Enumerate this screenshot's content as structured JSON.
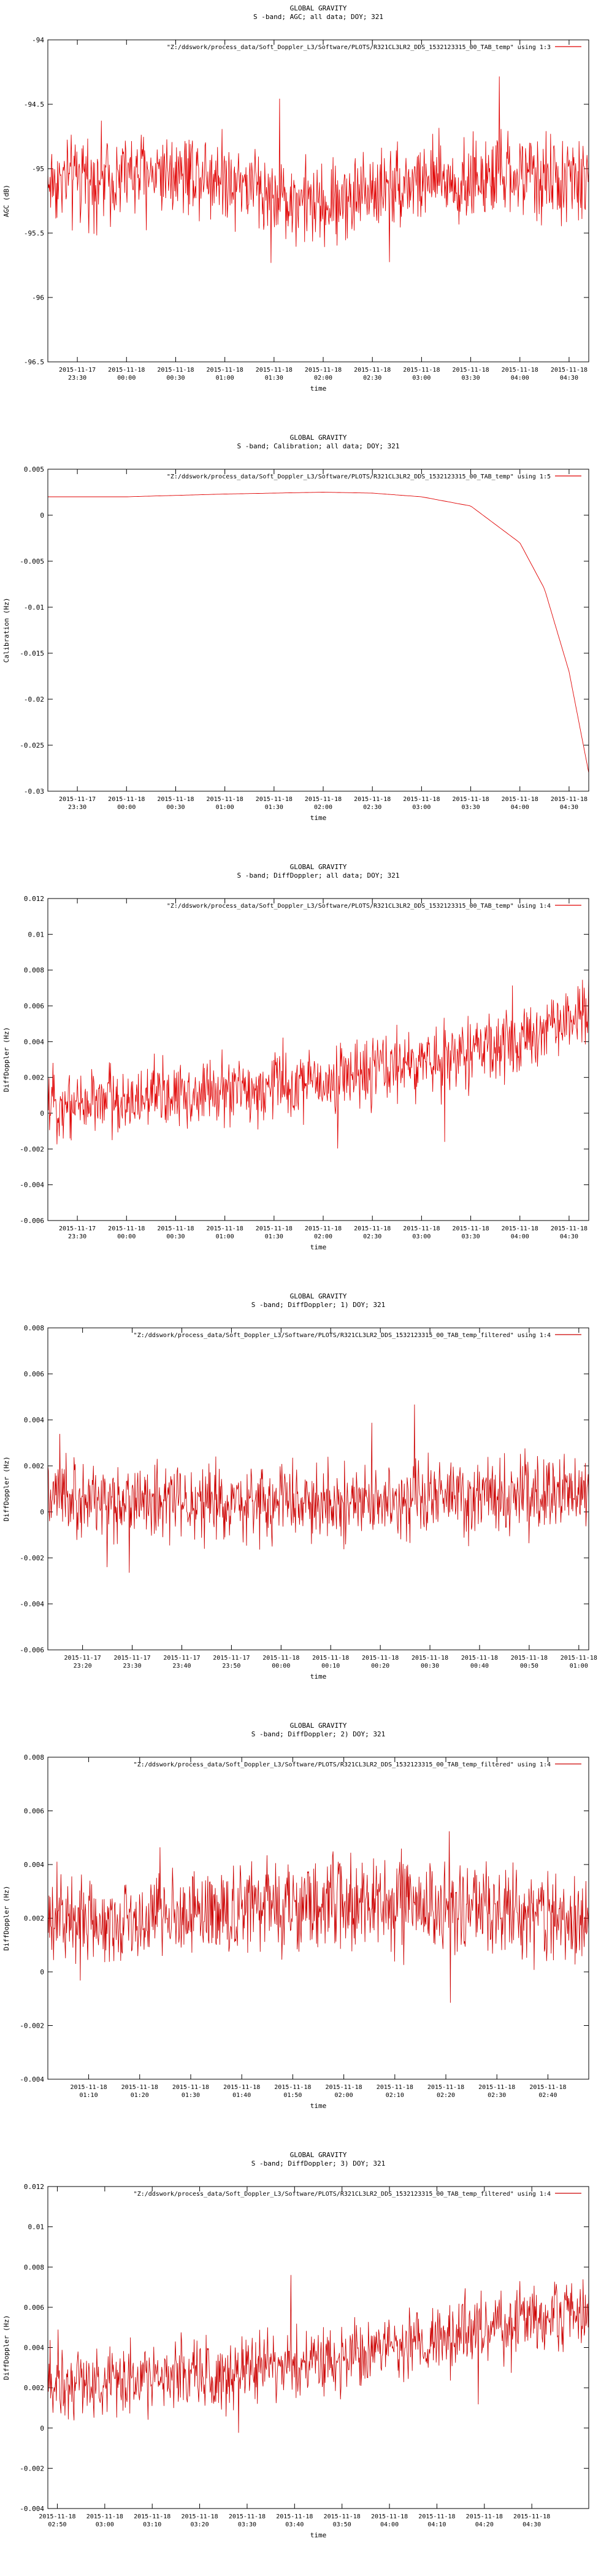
{
  "chart_data": [
    {
      "type": "line",
      "title": "GLOBAL GRAVITY",
      "subtitle": "S -band; AGC; all data; DOY; 321",
      "legend": "\"Z:/ddswork/process_data/Soft_Doppler_L3/Software/PLOTS/R321CL3LR2_DDS_1532123315_00_TAB_temp\" using 1:3",
      "legend_position": "top-right",
      "ylabel": "AGC (dB)",
      "xlabel": "time",
      "ylim": [
        -96.5,
        -94
      ],
      "yticks": [
        "-94",
        "-94.5",
        "-95",
        "-95.5",
        "-96",
        "-96.5"
      ],
      "xticks": [
        [
          "2015-11-17",
          "23:30"
        ],
        [
          "2015-11-18",
          "00:00"
        ],
        [
          "2015-11-18",
          "00:30"
        ],
        [
          "2015-11-18",
          "01:00"
        ],
        [
          "2015-11-18",
          "01:30"
        ],
        [
          "2015-11-18",
          "02:00"
        ],
        [
          "2015-11-18",
          "02:30"
        ],
        [
          "2015-11-18",
          "03:00"
        ],
        [
          "2015-11-18",
          "03:30"
        ],
        [
          "2015-11-18",
          "04:00"
        ],
        [
          "2015-11-18",
          "04:30"
        ]
      ],
      "x_range": [
        "2015-11-17 23:12",
        "2015-11-18 04:42"
      ],
      "color": "#e00000",
      "series": [
        {
          "name": "",
          "x": [
            "2015-11-17 23:12",
            "2015-11-18 00:00",
            "2015-11-18 00:30",
            "2015-11-18 01:00",
            "2015-11-18 01:30",
            "2015-11-18 02:00",
            "2015-11-18 02:30",
            "2015-11-18 03:00",
            "2015-11-18 03:30",
            "2015-11-18 04:00",
            "2015-11-18 04:42"
          ],
          "y": [
            -95.1,
            -95.05,
            -95.0,
            -95.05,
            -95.2,
            -95.3,
            -95.15,
            -95.1,
            -95.1,
            -95.05,
            -95.1
          ],
          "noise": 0.28
        }
      ]
    },
    {
      "type": "line",
      "title": "GLOBAL GRAVITY",
      "subtitle": "S -band; Calibration; all data; DOY; 321",
      "legend": "\"Z:/ddswork/process_data/Soft_Doppler_L3/Software/PLOTS/R321CL3LR2_DDS_1532123315_00_TAB_temp\" using 1:5",
      "legend_position": "top-right",
      "ylabel": "Calibration (Hz)",
      "xlabel": "time",
      "ylim": [
        -0.03,
        0.005
      ],
      "yticks": [
        "0.005",
        "0",
        "-0.005",
        "-0.01",
        "-0.015",
        "-0.02",
        "-0.025",
        "-0.03"
      ],
      "xticks": [
        [
          "2015-11-17",
          "23:30"
        ],
        [
          "2015-11-18",
          "00:00"
        ],
        [
          "2015-11-18",
          "00:30"
        ],
        [
          "2015-11-18",
          "01:00"
        ],
        [
          "2015-11-18",
          "01:30"
        ],
        [
          "2015-11-18",
          "02:00"
        ],
        [
          "2015-11-18",
          "02:30"
        ],
        [
          "2015-11-18",
          "03:00"
        ],
        [
          "2015-11-18",
          "03:30"
        ],
        [
          "2015-11-18",
          "04:00"
        ],
        [
          "2015-11-18",
          "04:30"
        ]
      ],
      "x_range": [
        "2015-11-17 23:12",
        "2015-11-18 04:42"
      ],
      "color": "#e00000",
      "series": [
        {
          "name": "",
          "x": [
            "2015-11-17 23:12",
            "2015-11-18 00:00",
            "2015-11-18 01:00",
            "2015-11-18 02:00",
            "2015-11-18 02:30",
            "2015-11-18 03:00",
            "2015-11-18 03:30",
            "2015-11-18 04:00",
            "2015-11-18 04:15",
            "2015-11-18 04:30",
            "2015-11-18 04:42"
          ],
          "y": [
            0.002,
            0.002,
            0.0023,
            0.0025,
            0.0024,
            0.002,
            0.001,
            -0.003,
            -0.008,
            -0.017,
            -0.028
          ],
          "noise": 0
        }
      ]
    },
    {
      "type": "line",
      "title": "GLOBAL GRAVITY",
      "subtitle": "S -band; DiffDoppler; all data; DOY; 321",
      "legend": "\"Z:/ddswork/process_data/Soft_Doppler_L3/Software/PLOTS/R321CL3LR2_DDS_1532123315_00_TAB_temp\" using 1:4",
      "legend_position": "top-right",
      "ylabel": "DiffDoppler (Hz)",
      "xlabel": "time",
      "ylim": [
        -0.006,
        0.012
      ],
      "yticks": [
        "0.012",
        "0.01",
        "0.008",
        "0.006",
        "0.004",
        "0.002",
        "0",
        "-0.002",
        "-0.004",
        "-0.006"
      ],
      "xticks": [
        [
          "2015-11-17",
          "23:30"
        ],
        [
          "2015-11-18",
          "00:00"
        ],
        [
          "2015-11-18",
          "00:30"
        ],
        [
          "2015-11-18",
          "01:00"
        ],
        [
          "2015-11-18",
          "01:30"
        ],
        [
          "2015-11-18",
          "02:00"
        ],
        [
          "2015-11-18",
          "02:30"
        ],
        [
          "2015-11-18",
          "03:00"
        ],
        [
          "2015-11-18",
          "03:30"
        ],
        [
          "2015-11-18",
          "04:00"
        ],
        [
          "2015-11-18",
          "04:30"
        ]
      ],
      "x_range": [
        "2015-11-17 23:12",
        "2015-11-18 04:42"
      ],
      "color": "#e00000",
      "series": [
        {
          "name": "",
          "x": [
            "2015-11-17 23:12",
            "2015-11-18 00:00",
            "2015-11-18 01:00",
            "2015-11-18 02:00",
            "2015-11-18 03:00",
            "2015-11-18 04:00",
            "2015-11-18 04:42"
          ],
          "y": [
            0.0005,
            0.0008,
            0.0012,
            0.0018,
            0.0028,
            0.004,
            0.0058
          ],
          "noise": 0.0016
        }
      ]
    },
    {
      "type": "line",
      "title": "GLOBAL GRAVITY",
      "subtitle": "S -band; DiffDoppler; 1) DOY; 321",
      "legend": "\"Z:/ddswork/process_data/Soft_Doppler_L3/Software/PLOTS/R321CL3LR2_DDS_1532123315_00_TAB_temp_filtered\" using 1:4",
      "legend_position": "top-right",
      "ylabel": "DiffDoppler (Hz)",
      "xlabel": "time",
      "ylim": [
        -0.006,
        0.008
      ],
      "yticks": [
        "0.008",
        "0.006",
        "0.004",
        "0.002",
        "0",
        "-0.002",
        "-0.004",
        "-0.006"
      ],
      "xticks": [
        [
          "2015-11-17",
          "23:20"
        ],
        [
          "2015-11-17",
          "23:30"
        ],
        [
          "2015-11-17",
          "23:40"
        ],
        [
          "2015-11-17",
          "23:50"
        ],
        [
          "2015-11-18",
          "00:00"
        ],
        [
          "2015-11-18",
          "00:10"
        ],
        [
          "2015-11-18",
          "00:20"
        ],
        [
          "2015-11-18",
          "00:30"
        ],
        [
          "2015-11-18",
          "00:40"
        ],
        [
          "2015-11-18",
          "00:50"
        ],
        [
          "2015-11-18",
          "01:00"
        ]
      ],
      "x_range": [
        "2015-11-17 23:13",
        "2015-11-18 01:02"
      ],
      "color": "#cc0000",
      "series": [
        {
          "name": "",
          "x": [
            "2015-11-17 23:13",
            "2015-11-18 00:00",
            "2015-11-18 01:02"
          ],
          "y": [
            0.0005,
            0.0003,
            0.0008
          ],
          "noise": 0.0014
        }
      ]
    },
    {
      "type": "line",
      "title": "GLOBAL GRAVITY",
      "subtitle": "S -band; DiffDoppler; 2) DOY; 321",
      "legend": "\"Z:/ddswork/process_data/Soft_Doppler_L3/Software/PLOTS/R321CL3LR2_DDS_1532123315_00_TAB_temp_filtered\" using 1:4",
      "legend_position": "top-right",
      "ylabel": "DiffDoppler (Hz)",
      "xlabel": "time",
      "ylim": [
        -0.004,
        0.008
      ],
      "yticks": [
        "0.008",
        "0.006",
        "0.004",
        "0.002",
        "0",
        "-0.002",
        "-0.004"
      ],
      "xticks": [
        [
          "2015-11-18",
          "01:10"
        ],
        [
          "2015-11-18",
          "01:20"
        ],
        [
          "2015-11-18",
          "01:30"
        ],
        [
          "2015-11-18",
          "01:40"
        ],
        [
          "2015-11-18",
          "01:50"
        ],
        [
          "2015-11-18",
          "02:00"
        ],
        [
          "2015-11-18",
          "02:10"
        ],
        [
          "2015-11-18",
          "02:20"
        ],
        [
          "2015-11-18",
          "02:30"
        ],
        [
          "2015-11-18",
          "02:40"
        ]
      ],
      "x_range": [
        "2015-11-18 01:02",
        "2015-11-18 02:48"
      ],
      "color": "#cc0000",
      "series": [
        {
          "name": "",
          "x": [
            "2015-11-18 01:02",
            "2015-11-18 01:30",
            "2015-11-18 02:00",
            "2015-11-18 02:48"
          ],
          "y": [
            0.0018,
            0.0022,
            0.0026,
            0.002
          ],
          "noise": 0.0014
        }
      ]
    },
    {
      "type": "line",
      "title": "GLOBAL GRAVITY",
      "subtitle": "S -band; DiffDoppler; 3) DOY; 321",
      "legend": "\"Z:/ddswork/process_data/Soft_Doppler_L3/Software/PLOTS/R321CL3LR2_DDS_1532123315_00_TAB_temp_filtered\" using 1:4",
      "legend_position": "top-right",
      "ylabel": "DiffDoppler (Hz)",
      "xlabel": "time",
      "ylim": [
        -0.004,
        0.012
      ],
      "yticks": [
        "0.012",
        "0.01",
        "0.008",
        "0.006",
        "0.004",
        "0.002",
        "0",
        "-0.002",
        "-0.004"
      ],
      "xticks": [
        [
          "2015-11-18",
          "02:50"
        ],
        [
          "2015-11-18",
          "03:00"
        ],
        [
          "2015-11-18",
          "03:10"
        ],
        [
          "2015-11-18",
          "03:20"
        ],
        [
          "2015-11-18",
          "03:30"
        ],
        [
          "2015-11-18",
          "03:40"
        ],
        [
          "2015-11-18",
          "03:50"
        ],
        [
          "2015-11-18",
          "04:00"
        ],
        [
          "2015-11-18",
          "04:10"
        ],
        [
          "2015-11-18",
          "04:20"
        ],
        [
          "2015-11-18",
          "04:30"
        ]
      ],
      "x_range": [
        "2015-11-18 02:48",
        "2015-11-18 04:42"
      ],
      "color": "#cc0000",
      "series": [
        {
          "name": "",
          "x": [
            "2015-11-18 02:48",
            "2015-11-18 03:20",
            "2015-11-18 04:00",
            "2015-11-18 04:42"
          ],
          "y": [
            0.0022,
            0.0025,
            0.004,
            0.0058
          ],
          "noise": 0.0015
        }
      ]
    }
  ]
}
